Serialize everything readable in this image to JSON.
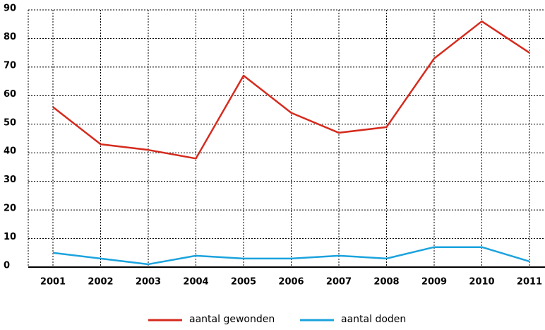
{
  "chart_data": {
    "type": "line",
    "categories": [
      "2001",
      "2002",
      "2003",
      "2004",
      "2005",
      "2006",
      "2007",
      "2008",
      "2009",
      "2010",
      "2011"
    ],
    "series": [
      {
        "name": "aantal gewonden",
        "color": "#d52b1e",
        "values": [
          56,
          43,
          41,
          38,
          67,
          54,
          47,
          49,
          73,
          86,
          75
        ]
      },
      {
        "name": "aantal doden",
        "color": "#1ba3dd",
        "values": [
          5,
          3,
          1,
          4,
          3,
          3,
          4,
          3,
          7,
          7,
          2
        ]
      }
    ],
    "ylim": [
      0,
      90
    ],
    "yticks": [
      0,
      10,
      20,
      30,
      40,
      50,
      60,
      70,
      80,
      90
    ],
    "grid": true
  }
}
